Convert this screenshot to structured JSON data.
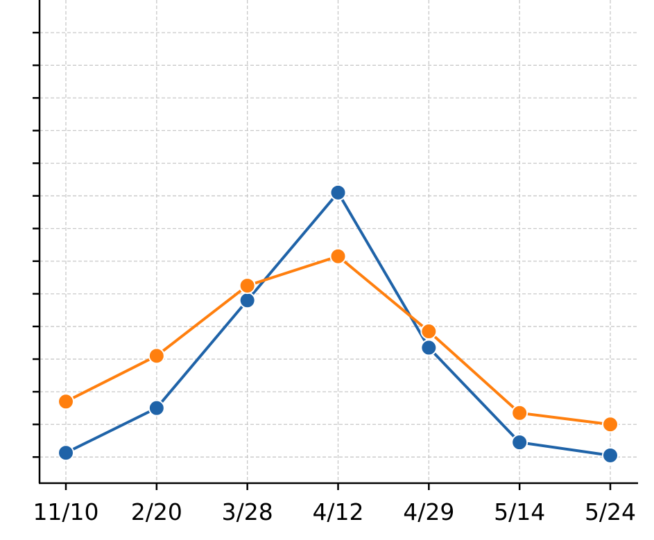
{
  "chart_data": {
    "type": "line",
    "categories": [
      "11/10",
      "2/20",
      "3/28",
      "4/12",
      "4/29",
      "5/14",
      "5/24"
    ],
    "series": [
      {
        "color": "#1f63a8",
        "values": [
          0.13,
          1.5,
          4.8,
          8.1,
          3.35,
          0.45,
          0.05
        ]
      },
      {
        "color": "#ff7f0e",
        "values": [
          1.7,
          3.1,
          5.25,
          6.15,
          3.85,
          1.35,
          1.0
        ]
      }
    ],
    "ylim": [
      -0.8,
      14
    ],
    "yticks": [
      0,
      1,
      2,
      3,
      4,
      5,
      6,
      7,
      8,
      9,
      10,
      11,
      12,
      13
    ],
    "grid": true
  }
}
